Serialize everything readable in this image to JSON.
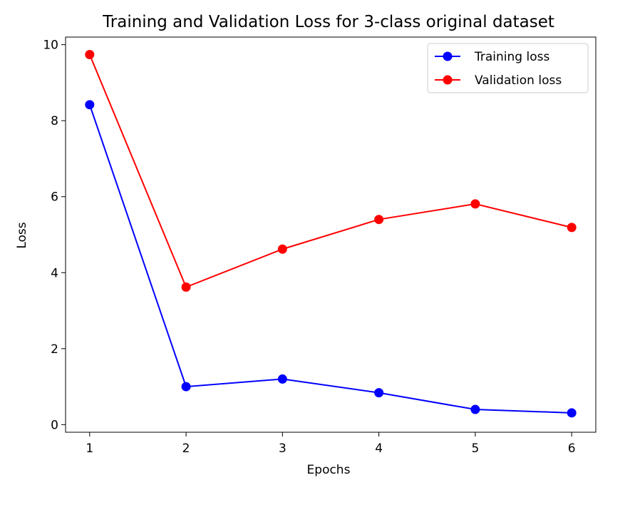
{
  "chart_data": {
    "type": "line",
    "title": "Training and Validation Loss for 3-class original dataset",
    "xlabel": "Epochs",
    "ylabel": "Loss",
    "x": [
      1,
      2,
      3,
      4,
      5,
      6
    ],
    "xlim": [
      0.75,
      6.25
    ],
    "ylim": [
      -0.2,
      10.2
    ],
    "xticks": [
      1,
      2,
      3,
      4,
      5,
      6
    ],
    "yticks": [
      0,
      2,
      4,
      6,
      8,
      10
    ],
    "grid": false,
    "legend_position": "top-right",
    "series": [
      {
        "name": "Training loss",
        "color": "#0000ff",
        "values": [
          8.42,
          1.0,
          1.2,
          0.84,
          0.4,
          0.31
        ]
      },
      {
        "name": "Validation loss",
        "color": "#ff0000",
        "values": [
          9.74,
          3.62,
          4.62,
          5.4,
          5.81,
          5.19
        ]
      }
    ]
  }
}
